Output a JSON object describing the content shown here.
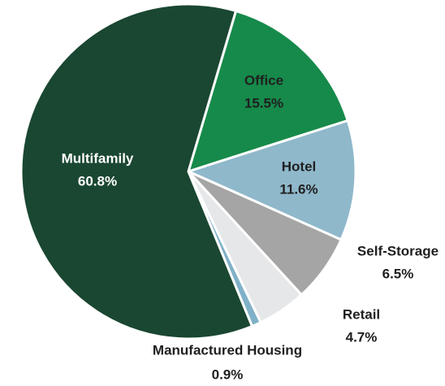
{
  "chart_data": {
    "type": "pie",
    "categories": [
      "Office",
      "Hotel",
      "Self-Storage",
      "Retail",
      "Manufactured Housing",
      "Multifamily"
    ],
    "values": [
      15.5,
      11.6,
      6.5,
      4.7,
      0.9,
      60.8
    ],
    "value_labels": [
      "15.5%",
      "11.6%",
      "6.5%",
      "4.7%",
      "0.9%",
      "60.8%"
    ],
    "colors": [
      "#168a4a",
      "#8fb8cb",
      "#a5a5a5",
      "#e6e7e9",
      "#7fb1c8",
      "#1a4731"
    ]
  }
}
